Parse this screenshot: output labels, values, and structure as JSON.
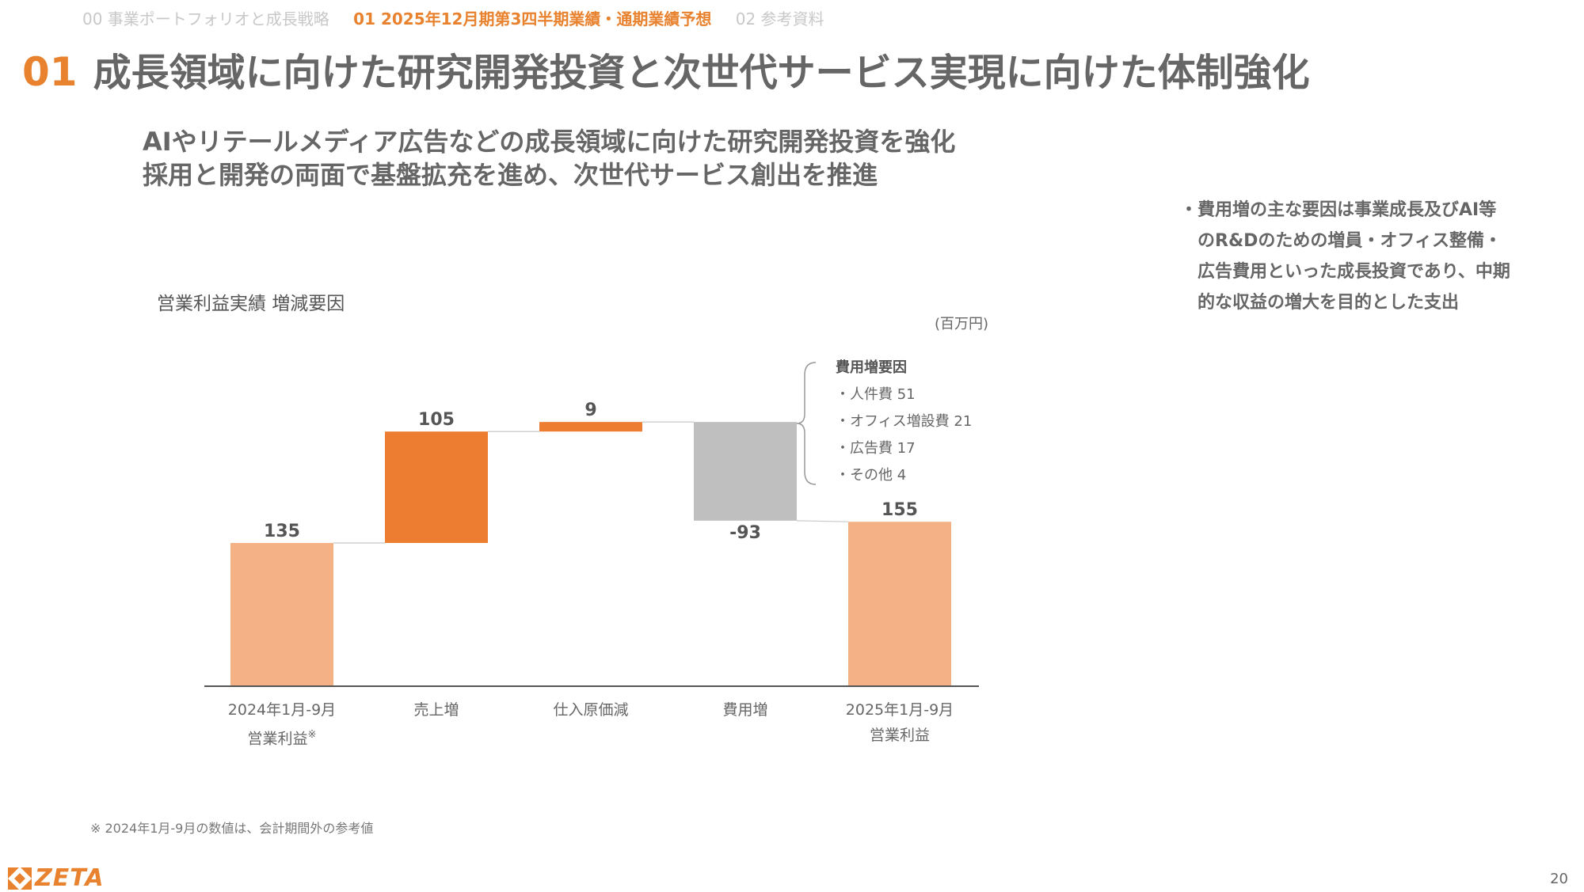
{
  "nav": {
    "items": [
      {
        "label": "00 事業ポートフォリオと成長戦略",
        "active": false
      },
      {
        "label": "01 2025年12月期第3四半期業績・通期業績予想",
        "active": true
      },
      {
        "label": "02 参考資料",
        "active": false
      }
    ]
  },
  "page": {
    "section_number": "01",
    "title": "成長領域に向けた研究開発投資と次世代サービス実現に向けた体制強化",
    "headline_line1": "AIやリテールメディア広告などの成長領域に向けた研究開発投資を強化",
    "headline_line2": "採用と開発の両面で基盤拡充を進め、次世代サービス創出を推進",
    "bullet_marker": "・",
    "bullet_text": "費用増の主な要因は事業成長及びAI等のR&Dのための増員・オフィス整備・広告費用といった成長投資であり、中期的な収益の増大を目的とした支出",
    "footnote": "※ 2024年1月-9月の数値は、会計期間外の参考値",
    "logo_text": "ZETA",
    "page_number": "20"
  },
  "colors": {
    "accent": "#e8822e",
    "bar_total": "#f3b185",
    "bar_increase": "#ed7d31",
    "bar_decrease": "#bfbfbf",
    "axis": "#555555",
    "connector": "#c8c8c8"
  },
  "chart_data": {
    "type": "bar",
    "subtype": "waterfall",
    "title": "営業利益実績 増減要因",
    "unit": "(百万円)",
    "categories": [
      {
        "line1": "2024年1月-9月",
        "line2": "営業利益",
        "mark": "※"
      },
      {
        "line1": "売上増",
        "line2": "",
        "mark": ""
      },
      {
        "line1": "仕入原価減",
        "line2": "",
        "mark": ""
      },
      {
        "line1": "費用増",
        "line2": "",
        "mark": ""
      },
      {
        "line1": "2025年1月-9月",
        "line2": "営業利益",
        "mark": ""
      }
    ],
    "values": [
      135,
      105,
      9,
      -93,
      155
    ],
    "data_labels": [
      "135",
      "105",
      "9",
      "-93",
      "155"
    ],
    "kinds": [
      "total",
      "increase",
      "increase",
      "decrease",
      "total"
    ],
    "ylim": [
      0,
      260
    ],
    "grid": false,
    "annotation": {
      "title": "費用増要因",
      "items": [
        "・人件費 51",
        "・オフィス増設費 21",
        "・広告費 17",
        "・その他 4"
      ]
    }
  }
}
